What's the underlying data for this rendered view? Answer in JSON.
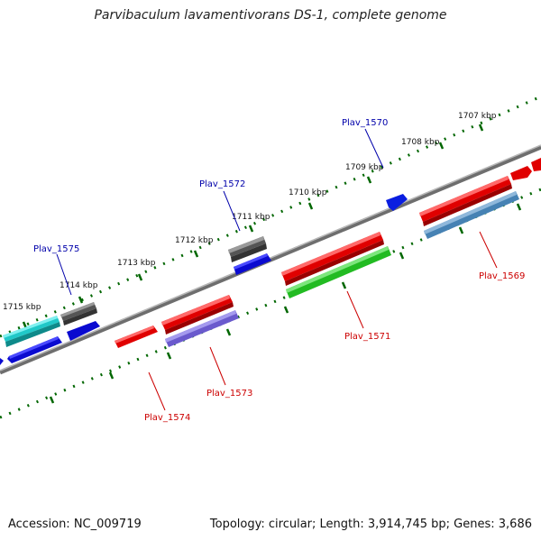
{
  "title": "Parvibaculum lavamentivorans DS-1, complete genome",
  "footer": {
    "accession": "Accession: NC_009719",
    "topology": "Topology: circular; Length: 3,914,745 bp; Genes: 3,686"
  },
  "tick_labels": [
    "1707 kbp",
    "1708 kbp",
    "1709 kbp",
    "1710 kbp",
    "1711 kbp",
    "1712 kbp",
    "1713 kbp",
    "1714 kbp",
    "1715 kbp"
  ],
  "gene_labels": {
    "forward": [
      "Plav_1570",
      "Plav_1572",
      "Plav_1575"
    ],
    "reverse": [
      "Plav_1569",
      "Plav_1571",
      "Plav_1573",
      "Plav_1574"
    ]
  },
  "colors": {
    "forward_label": "#0000aa",
    "reverse_label": "#cc0000",
    "backbone": "#888888",
    "tick": "#006600"
  }
}
